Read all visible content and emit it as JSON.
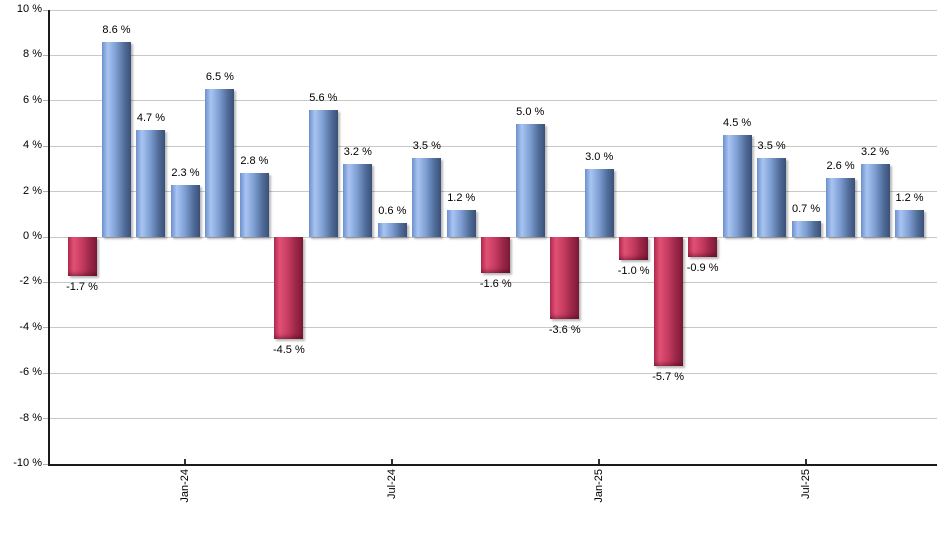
{
  "chart_data": {
    "type": "bar",
    "title": "",
    "xlabel": "",
    "ylabel": "",
    "ylim": [
      -10,
      10
    ],
    "ytick_step": 2,
    "grid": true,
    "legend": false,
    "values": [
      -1.7,
      8.6,
      4.7,
      2.3,
      6.5,
      2.8,
      -4.5,
      5.6,
      3.2,
      0.6,
      3.5,
      1.2,
      -1.6,
      5.0,
      -3.6,
      3.0,
      -1.0,
      -5.7,
      -0.9,
      4.5,
      3.5,
      0.7,
      2.6,
      3.2,
      1.2
    ],
    "bar_labels": [
      "-1.7 %",
      "8.6 %",
      "4.7 %",
      "2.3 %",
      "6.5 %",
      "2.8 %",
      "-4.5 %",
      "5.6 %",
      "3.2 %",
      "0.6 %",
      "3.5 %",
      "1.2 %",
      "-1.6 %",
      "5.0 %",
      "-3.6 %",
      "3.0 %",
      "-1.0 %",
      "-5.7 %",
      "-0.9 %",
      "4.5 %",
      "3.5 %",
      "0.7 %",
      "2.6 %",
      "3.2 %",
      "1.2 %"
    ],
    "ytick_labels": [
      "10 %",
      "8 %",
      "6 %",
      "4 %",
      "2 %",
      "0 %",
      "-2 %",
      "-4 %",
      "-6 %",
      "-8 %",
      "-10 %"
    ],
    "x_ticks": [
      {
        "index": 3,
        "label": "Jan-24"
      },
      {
        "index": 9,
        "label": "Jul-24"
      },
      {
        "index": 15,
        "label": "Jan-25"
      },
      {
        "index": 21,
        "label": "Jul-25"
      }
    ],
    "colors": {
      "positive_gradient": [
        "#6c90cc",
        "#a8c4f2",
        "#7c9cd0",
        "#54709e",
        "#3a5078"
      ],
      "negative_gradient": [
        "#b72b52",
        "#e15175",
        "#c53a60",
        "#9c2747",
        "#7d1b38"
      ],
      "gridline": "#c8c8c8",
      "tick": "#b0b0b0",
      "axis": "#1a1a1a",
      "label_text": "#000000"
    }
  }
}
